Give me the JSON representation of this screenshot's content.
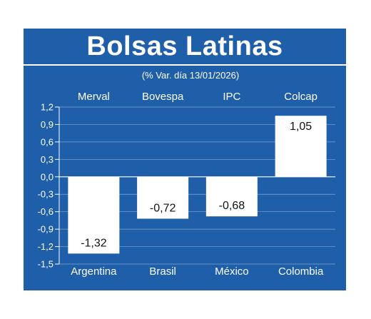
{
  "header": {
    "title": "Bolsas Latinas",
    "subtitle": "(% Var. día 13/01/2026)"
  },
  "colors": {
    "background": "#1f5ea8",
    "bar": "#ffffff",
    "text_on_blue": "#ffffff",
    "text_on_bar": "#111111",
    "grid": "#ffffff"
  },
  "chart_data": {
    "type": "bar",
    "title": "Bolsas Latinas",
    "subtitle": "(% Var. día 13/01/2026)",
    "categories": [
      "Merval",
      "Bovespa",
      "IPC",
      "Colcap"
    ],
    "countries": [
      "Argentina",
      "Brasil",
      "México",
      "Colombia"
    ],
    "values": [
      -1.32,
      -0.72,
      -0.68,
      1.05
    ],
    "value_labels": [
      "-1,32",
      "-0,72",
      "-0,68",
      "1,05"
    ],
    "ylim": [
      -1.5,
      1.2
    ],
    "yticks": [
      1.2,
      0.9,
      0.6,
      0.3,
      0.0,
      -0.3,
      -0.6,
      -0.9,
      -1.2,
      -1.5
    ],
    "ytick_labels": [
      "1,2",
      "0,9",
      "0,6",
      "0,3",
      "0,0",
      "-0,3",
      "-0,6",
      "-0,9",
      "-1,2",
      "-1,5"
    ],
    "grid": true,
    "xlabel": "",
    "ylabel": ""
  }
}
